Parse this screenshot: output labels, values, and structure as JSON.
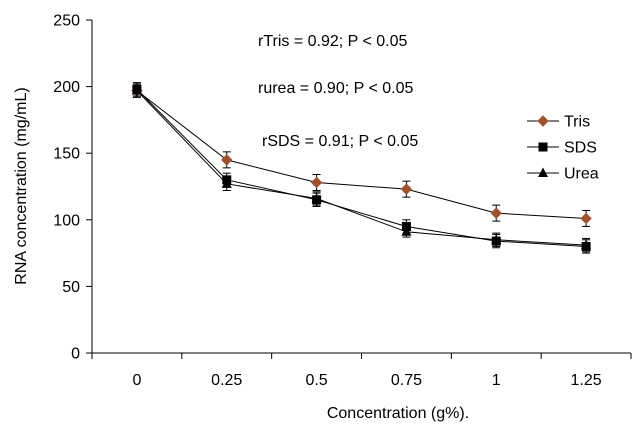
{
  "chart_data": {
    "type": "line",
    "xlabel": "Concentration (g%).",
    "ylabel": "RNA concentration (mg/mL)",
    "categories": [
      "0",
      "0.25",
      "0.5",
      "0.75",
      "1",
      "1.25"
    ],
    "ylim": [
      0,
      250
    ],
    "yticks": [
      "0",
      "50",
      "100",
      "150",
      "200",
      "250"
    ],
    "grid": false,
    "legend_position": "right",
    "series": [
      {
        "name": "Tris",
        "marker": "diamond",
        "color": "#000000",
        "marker_color": "#a0522d",
        "values": [
          197,
          145,
          128,
          123,
          105,
          101
        ],
        "errors": [
          5,
          6,
          6,
          6,
          6,
          6
        ]
      },
      {
        "name": "SDS",
        "marker": "square",
        "color": "#000000",
        "marker_color": "#000000",
        "values": [
          198,
          130,
          115,
          95,
          84,
          80
        ],
        "errors": [
          5,
          5,
          5,
          5,
          5,
          5
        ]
      },
      {
        "name": "Urea",
        "marker": "triangle",
        "color": "#000000",
        "marker_color": "#000000",
        "values": [
          197,
          127,
          116,
          91,
          85,
          81
        ],
        "errors": [
          5,
          5,
          5,
          4,
          5,
          5
        ]
      }
    ],
    "annotations": [
      "rTris = 0.92; P < 0.05",
      "rurea = 0.90; P < 0.05",
      "rSDS = 0.91; P < 0.05"
    ]
  }
}
